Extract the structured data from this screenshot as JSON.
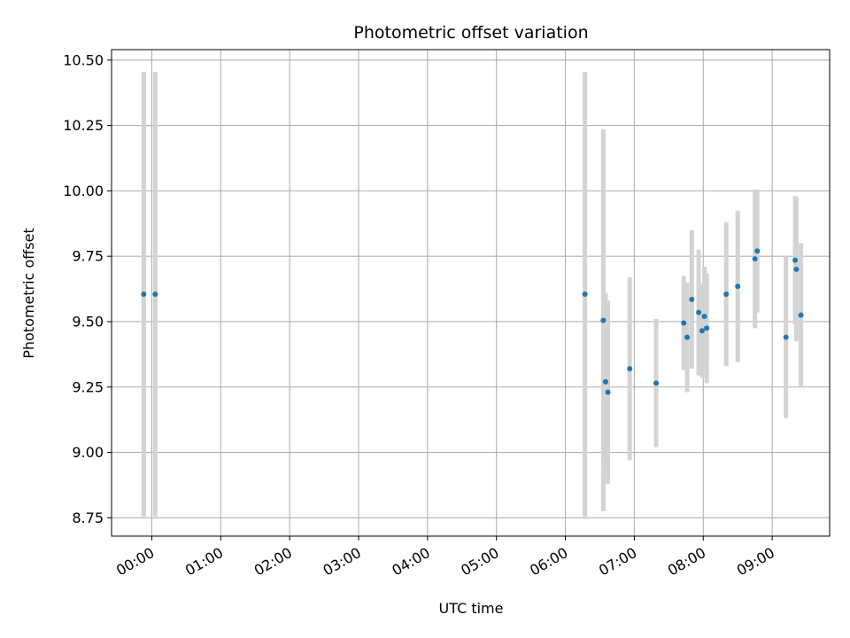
{
  "chart_data": {
    "type": "scatter",
    "title": "Photometric offset variation",
    "xlabel": "UTC time",
    "ylabel": "Photometric offset",
    "x_is_time": true,
    "xlim": [
      "-00:35",
      "09:50"
    ],
    "ylim": [
      8.68,
      10.54
    ],
    "xticks": [
      "00:00",
      "01:00",
      "02:00",
      "03:00",
      "04:00",
      "05:00",
      "06:00",
      "07:00",
      "08:00",
      "09:00"
    ],
    "yticks": [
      8.75,
      9.0,
      9.25,
      9.5,
      9.75,
      10.0,
      10.25,
      10.5
    ],
    "yticklabels": [
      "8.75",
      "9.00",
      "9.25",
      "9.50",
      "9.75",
      "10.00",
      "10.25",
      "10.50"
    ],
    "grid": true,
    "marker_color": "#1f77b4",
    "errorbar_color": "#d3d3d3",
    "points": [
      {
        "x": "-00:07",
        "y": 9.605,
        "err": 0.85
      },
      {
        "x": "00:03",
        "y": 9.605,
        "err": 0.85
      },
      {
        "x": "06:17",
        "y": 9.605,
        "err": 0.85
      },
      {
        "x": "06:33",
        "y": 9.505,
        "err": 0.73
      },
      {
        "x": "06:35",
        "y": 9.27,
        "err": 0.34
      },
      {
        "x": "06:37",
        "y": 9.23,
        "err": 0.35
      },
      {
        "x": "06:56",
        "y": 9.32,
        "err": 0.35
      },
      {
        "x": "07:19",
        "y": 9.265,
        "err": 0.245
      },
      {
        "x": "07:43",
        "y": 9.495,
        "err": 0.18
      },
      {
        "x": "07:46",
        "y": 9.44,
        "err": 0.21
      },
      {
        "x": "07:50",
        "y": 9.585,
        "err": 0.265
      },
      {
        "x": "07:56",
        "y": 9.535,
        "err": 0.24
      },
      {
        "x": "07:59",
        "y": 9.465,
        "err": 0.18
      },
      {
        "x": "08:01",
        "y": 9.52,
        "err": 0.19
      },
      {
        "x": "08:03",
        "y": 9.475,
        "err": 0.21
      },
      {
        "x": "08:20",
        "y": 9.605,
        "err": 0.275
      },
      {
        "x": "08:30",
        "y": 9.635,
        "err": 0.29
      },
      {
        "x": "08:45",
        "y": 9.74,
        "err": 0.265
      },
      {
        "x": "08:47",
        "y": 9.77,
        "err": 0.235
      },
      {
        "x": "09:12",
        "y": 9.44,
        "err": 0.31
      },
      {
        "x": "09:20",
        "y": 9.735,
        "err": 0.245
      },
      {
        "x": "09:21",
        "y": 9.7,
        "err": 0.275
      },
      {
        "x": "09:25",
        "y": 9.525,
        "err": 0.275
      }
    ]
  }
}
